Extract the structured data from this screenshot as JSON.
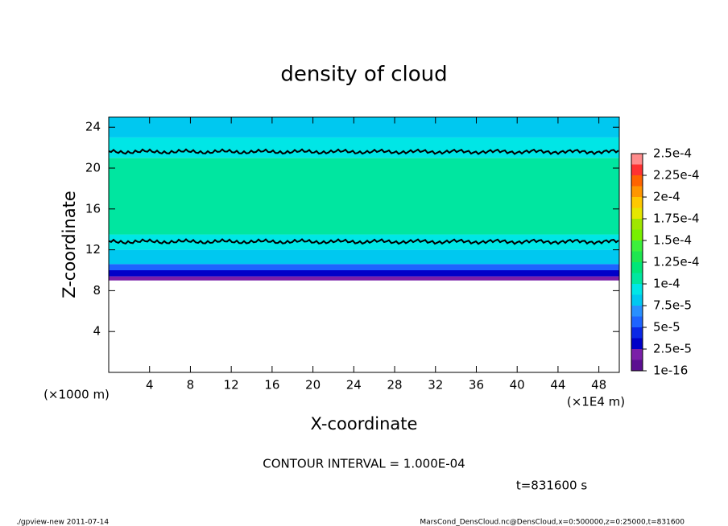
{
  "chart_data": {
    "type": "heatmap",
    "title": "density of cloud",
    "xlabel": "X-coordinate",
    "ylabel": "Z-coordinate",
    "x_unit": "(×1E4 m)",
    "y_unit": "(×1000 m)",
    "xlim": [
      0,
      50
    ],
    "xticks": [
      4,
      8,
      12,
      16,
      20,
      24,
      28,
      32,
      36,
      40,
      44,
      48
    ],
    "ylim": [
      0,
      25
    ],
    "yticks": [
      4,
      8,
      12,
      16,
      20,
      24
    ],
    "field": {
      "z": [
        9,
        9.4,
        10,
        10.6,
        12,
        13.5,
        21,
        23,
        25
      ],
      "values": [
        2e-05,
        3e-05,
        6e-05,
        8.5e-05,
        9.5e-05,
        0.00011,
        0.0001,
        8e-05
      ]
    },
    "contour_z": [
      12.8,
      21.6
    ],
    "colorbar": {
      "ticks": [
        {
          "value": 1e-16,
          "label": "1e-16"
        },
        {
          "value": 2.5e-05,
          "label": "2.5e-5"
        },
        {
          "value": 5e-05,
          "label": "5e-5"
        },
        {
          "value": 7.5e-05,
          "label": "7.5e-5"
        },
        {
          "value": 0.0001,
          "label": "1e-4"
        },
        {
          "value": 0.000125,
          "label": "1.25e-4"
        },
        {
          "value": 0.00015,
          "label": "1.5e-4"
        },
        {
          "value": 0.000175,
          "label": "1.75e-4"
        },
        {
          "value": 0.0002,
          "label": "2e-4"
        },
        {
          "value": 0.000225,
          "label": "2.25e-4"
        },
        {
          "value": 0.00025,
          "label": "2.5e-4"
        }
      ],
      "colors": [
        "#5b0f91",
        "#7a1fa8",
        "#0000c8",
        "#0a28e6",
        "#1e64ff",
        "#2890ff",
        "#00c8f0",
        "#00e6e6",
        "#00e6a0",
        "#00e678",
        "#1ee650",
        "#3cf03c",
        "#78f000",
        "#a0e600",
        "#e6e600",
        "#ffc800",
        "#ff9600",
        "#ff6400",
        "#ff3232",
        "#ff8c8c"
      ]
    },
    "contour_interval": "CONTOUR INTERVAL = 1.000E-04",
    "time_label": "t=831600 s",
    "footer_left": "./gpview-new  2011-07-14",
    "footer_right": "MarsCond_DensCloud.nc@DensCloud,x=0:500000,z=0:25000,t=831600"
  }
}
